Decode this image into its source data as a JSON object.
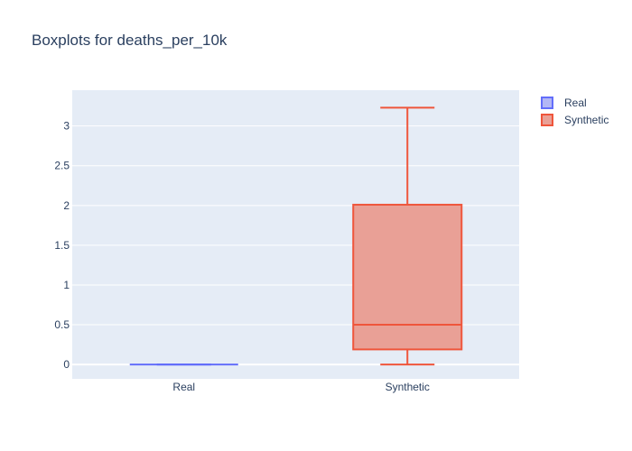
{
  "chart_data": {
    "type": "box",
    "title": "Boxplots for deaths_per_10k",
    "xlabel": "",
    "ylabel": "",
    "categories": [
      "Real",
      "Synthetic"
    ],
    "ylim": [
      -0.18,
      3.45
    ],
    "yticks": [
      0,
      0.5,
      1,
      1.5,
      2,
      2.5,
      3
    ],
    "ytick_labels": [
      "0",
      "0.5",
      "1",
      "1.5",
      "2",
      "2.5",
      "3"
    ],
    "grid": true,
    "legend": "top-right",
    "series": [
      {
        "name": "Real",
        "category": "Real",
        "min": 0,
        "q1": 0,
        "median": 0,
        "q3": 0,
        "max": 0,
        "line_color": "#636efa",
        "fill_color": "#b3b7f5"
      },
      {
        "name": "Synthetic",
        "category": "Synthetic",
        "min": 0,
        "q1": 0.19,
        "median": 0.5,
        "q3": 2.01,
        "max": 3.23,
        "line_color": "#ef553b",
        "fill_color": "#e9a096"
      }
    ]
  },
  "colors": {
    "plot_background": "#e5ecf6",
    "gridline": "#ffffff",
    "text": "#2a3f5f"
  }
}
